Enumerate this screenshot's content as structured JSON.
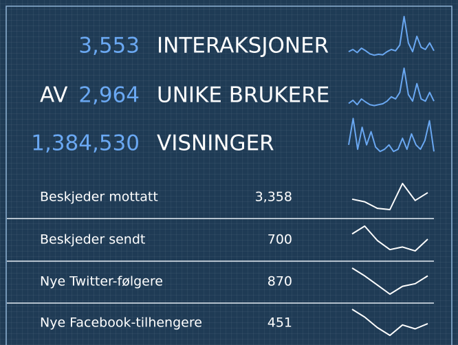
{
  "kpis": [
    {
      "prefix": null,
      "value": "3,553",
      "label": "INTERAKSJONER",
      "spark": [
        20,
        25,
        18,
        28,
        22,
        15,
        12,
        14,
        13,
        20,
        25,
        22,
        35,
        100,
        40,
        20,
        55,
        30,
        25,
        40,
        22
      ]
    },
    {
      "prefix": "AV",
      "value": "2,964",
      "label": "UNIKE BRUKERE",
      "spark": [
        15,
        22,
        12,
        25,
        18,
        12,
        10,
        12,
        14,
        20,
        30,
        25,
        40,
        95,
        35,
        20,
        60,
        25,
        20,
        40,
        20
      ]
    },
    {
      "prefix": null,
      "value": "1,384,530",
      "label": "VISNINGER",
      "spark": [
        30,
        90,
        20,
        70,
        30,
        60,
        25,
        15,
        20,
        30,
        15,
        20,
        45,
        20,
        55,
        30,
        20,
        40,
        85,
        15
      ]
    }
  ],
  "rows": [
    {
      "label": "Beskjeder mottatt",
      "value": "3,358",
      "spark": [
        40,
        30,
        5,
        0,
        100,
        35,
        65
      ]
    },
    {
      "label": "Beskjeder sendt",
      "value": "700",
      "spark": [
        70,
        100,
        45,
        10,
        20,
        5,
        50
      ]
    },
    {
      "label": "Nye Twitter-følgere",
      "value": "870",
      "spark": [
        100,
        70,
        35,
        0,
        30,
        40,
        70
      ]
    },
    {
      "label": "Nye Facebook-tilhengere",
      "value": "451",
      "spark": [
        100,
        70,
        30,
        0,
        40,
        25,
        45
      ]
    }
  ]
}
